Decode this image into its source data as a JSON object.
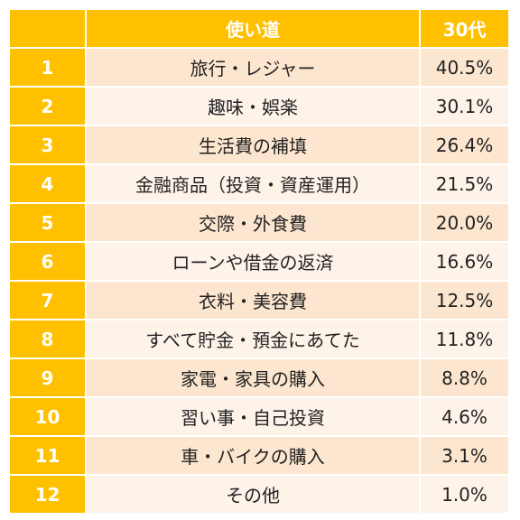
{
  "header": {
    "rank": "",
    "use": "使い道",
    "value": "30代"
  },
  "rows": [
    {
      "rank": "1",
      "use": "旅行・レジャー",
      "value": "40.5%"
    },
    {
      "rank": "2",
      "use": "趣味・娯楽",
      "value": "30.1%"
    },
    {
      "rank": "3",
      "use": "生活費の補填",
      "value": "26.4%"
    },
    {
      "rank": "4",
      "use": "金融商品（投資・資産運用）",
      "value": "21.5%"
    },
    {
      "rank": "5",
      "use": "交際・外食費",
      "value": "20.0%"
    },
    {
      "rank": "6",
      "use": "ローンや借金の返済",
      "value": "16.6%"
    },
    {
      "rank": "7",
      "use": "衣料・美容費",
      "value": "12.5%"
    },
    {
      "rank": "8",
      "use": "すべて貯金・預金にあてた",
      "value": "11.8%"
    },
    {
      "rank": "9",
      "use": "家電・家具の購入",
      "value": "8.8%"
    },
    {
      "rank": "10",
      "use": "習い事・自己投資",
      "value": "4.6%"
    },
    {
      "rank": "11",
      "use": "車・バイクの購入",
      "value": "3.1%"
    },
    {
      "rank": "12",
      "use": "その他",
      "value": "1.0%"
    }
  ],
  "colors": {
    "header": "#ffc000",
    "row_odd": "#fde6cf",
    "row_even": "#fef3e9"
  }
}
